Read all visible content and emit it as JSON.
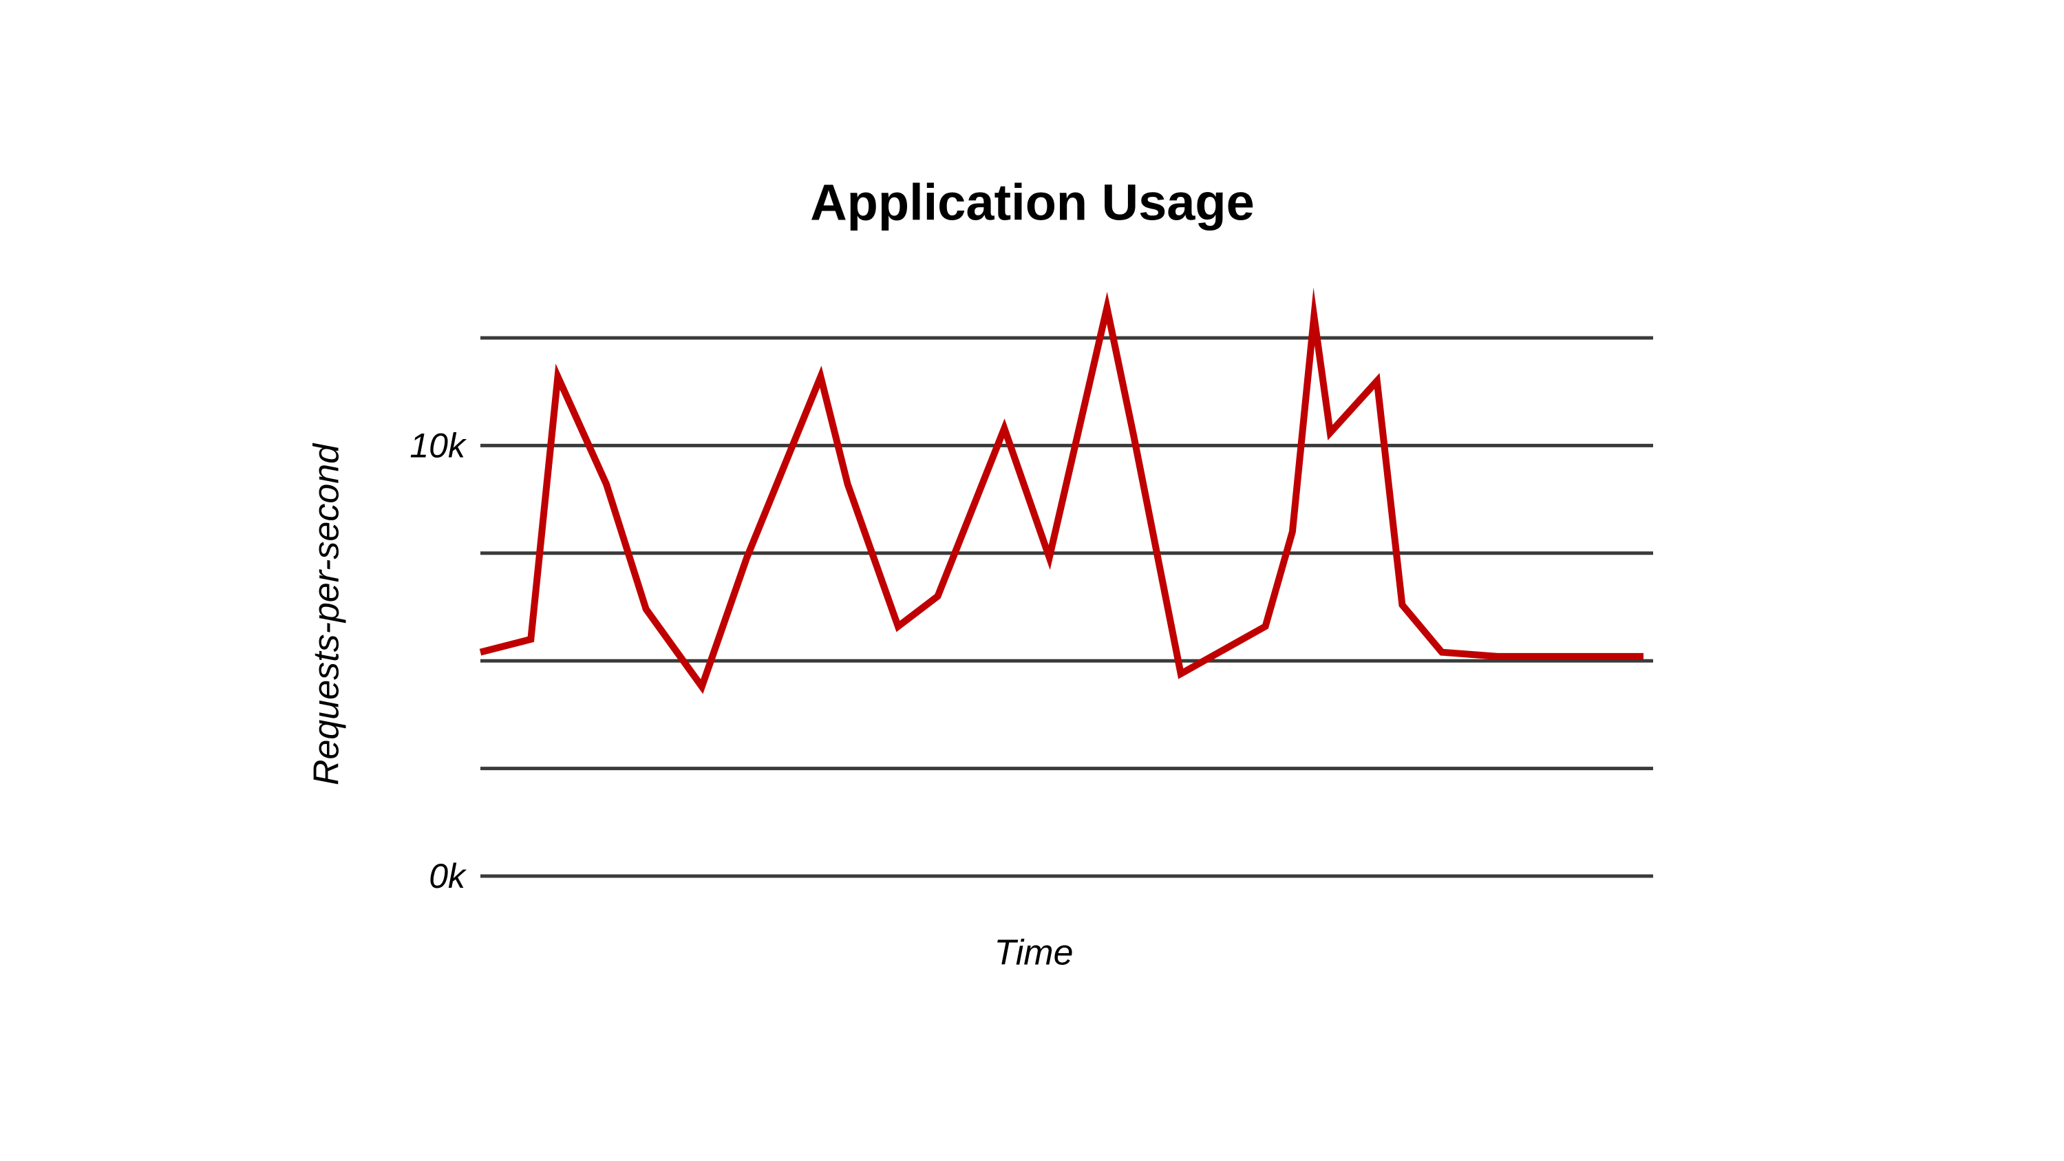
{
  "chart_data": {
    "type": "line",
    "title": "Application Usage",
    "xlabel": "Time",
    "ylabel": "Requests-per-second",
    "ylim": [
      0,
      12.5
    ],
    "grid": true,
    "gridlines": [
      0,
      2.5,
      5,
      7.5,
      10,
      12.5
    ],
    "yticks": [
      {
        "value": 0,
        "label": "0k"
      },
      {
        "value": 10,
        "label": "10k"
      }
    ],
    "line_color": "#c00000",
    "grid_color": "#3a3a3a",
    "series": [
      {
        "x": [
          0,
          2.8,
          4.3,
          7,
          9.2,
          12.3,
          14.8,
          18.9,
          20.4,
          23.2,
          25.4,
          29.1,
          31.6,
          34.8,
          36.3,
          38.9,
          43.6,
          45.1,
          46.3,
          47.2,
          49.8,
          51.2,
          53.4,
          56.5,
          59.1,
          64.6
        ],
        "values": [
          5.2,
          5.5,
          11.6,
          9.1,
          6.2,
          4.4,
          7.4,
          11.6,
          9.1,
          5.8,
          6.5,
          10.4,
          7.4,
          13.2,
          10.2,
          4.7,
          5.8,
          8.0,
          13.0,
          10.3,
          11.5,
          6.3,
          5.2,
          5.1,
          5.1,
          5.1
        ]
      }
    ],
    "xlim": [
      0,
      64.6
    ]
  }
}
